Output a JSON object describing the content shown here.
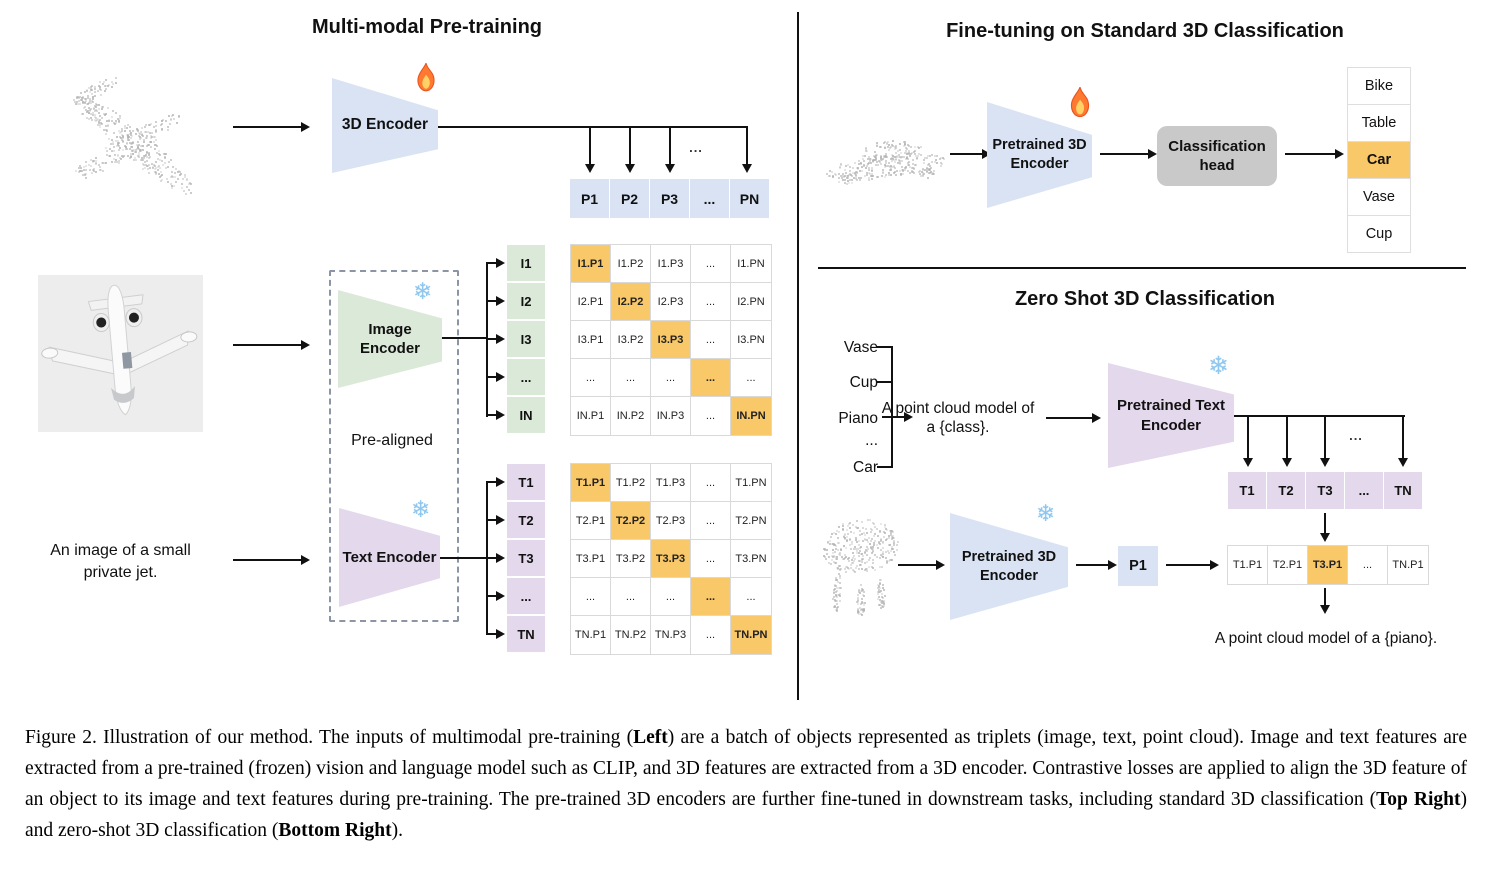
{
  "colors": {
    "blue": "#d9e3f4",
    "green": "#dbe9d8",
    "purple": "#e4d8ec",
    "orange": "#f9c868",
    "head_gray": "#c9c9c9",
    "grid": "#d9d9d9",
    "ink": "#111111",
    "dot": "#b3b3b3"
  },
  "icons": {
    "snowflake": "❄"
  },
  "left": {
    "title": "Multi-modal Pre-training",
    "encoder3d": "3D Encoder",
    "image_encoder": "Image Encoder",
    "text_encoder": "Text Encoder",
    "prealigned": "Pre-aligned",
    "jet_caption": "An image of a small private jet.",
    "ellipsis": "...",
    "p_row": [
      "P1",
      "P2",
      "P3",
      "...",
      "PN"
    ],
    "i_rows": [
      "I1",
      "I2",
      "I3",
      "...",
      "IN"
    ],
    "t_rows": [
      "T1",
      "T2",
      "T3",
      "...",
      "TN"
    ],
    "i_matrix": [
      [
        "I1.P1",
        "I1.P2",
        "I1.P3",
        "...",
        "I1.PN"
      ],
      [
        "I2.P1",
        "I2.P2",
        "I2.P3",
        "...",
        "I2.PN"
      ],
      [
        "I3.P1",
        "I3.P2",
        "I3.P3",
        "...",
        "I3.PN"
      ],
      [
        "...",
        "...",
        "...",
        "...",
        "..."
      ],
      [
        "IN.P1",
        "IN.P2",
        "IN.P3",
        "...",
        "IN.PN"
      ]
    ],
    "t_matrix": [
      [
        "T1.P1",
        "T1.P2",
        "T1.P3",
        "...",
        "T1.PN"
      ],
      [
        "T2.P1",
        "T2.P2",
        "T2.P3",
        "...",
        "T2.PN"
      ],
      [
        "T3.P1",
        "T3.P2",
        "T3.P3",
        "...",
        "T3.PN"
      ],
      [
        "...",
        "...",
        "...",
        "...",
        "..."
      ],
      [
        "TN.P1",
        "TN.P2",
        "TN.P3",
        "...",
        "TN.PN"
      ]
    ]
  },
  "top_right": {
    "title": "Fine-tuning on Standard 3D Classification",
    "encoder_label": "Pretrained 3D Encoder",
    "head_label": "Classification head",
    "classes": [
      "Bike",
      "Table",
      "Car",
      "Vase",
      "Cup"
    ],
    "highlighted_class": "Car"
  },
  "bottom_right": {
    "title": "Zero Shot 3D Classification",
    "class_list": [
      "Vase",
      "Cup",
      "Piano",
      "...",
      "Car"
    ],
    "prompt": "A point cloud model of a {class}.",
    "text_encoder_label": "Pretrained Text Encoder",
    "encoder_label": "Pretrained 3D Encoder",
    "p1": "P1",
    "ellipsis": "...",
    "t_row": [
      "T1",
      "T2",
      "T3",
      "...",
      "TN"
    ],
    "tp_row": [
      "T1.P1",
      "T2.P1",
      "T3.P1",
      "...",
      "TN.P1"
    ],
    "tp_highlight": "T3.P1",
    "result": "A point cloud model of a {piano}."
  },
  "caption": {
    "segments": [
      {
        "t": "Figure 2. Illustration of our method. The inputs of multimodal pre-training (",
        "b": 0
      },
      {
        "t": "Left",
        "b": 1
      },
      {
        "t": ") are a batch of objects represented as triplets (image, text, point cloud). Image and text features are extracted from a pre-trained (frozen) vision and language model such as CLIP, and 3D features are extracted from a 3D encoder. Contrastive losses are applied to align the 3D feature of an object to its image and text features during pre-training. The pre-trained 3D encoders are further fine-tuned in downstream tasks, including standard 3D classification (",
        "b": 0
      },
      {
        "t": "Top Right",
        "b": 1
      },
      {
        "t": ") and zero-shot 3D classification (",
        "b": 0
      },
      {
        "t": "Bottom Right",
        "b": 1
      },
      {
        "t": ").",
        "b": 0
      }
    ]
  }
}
